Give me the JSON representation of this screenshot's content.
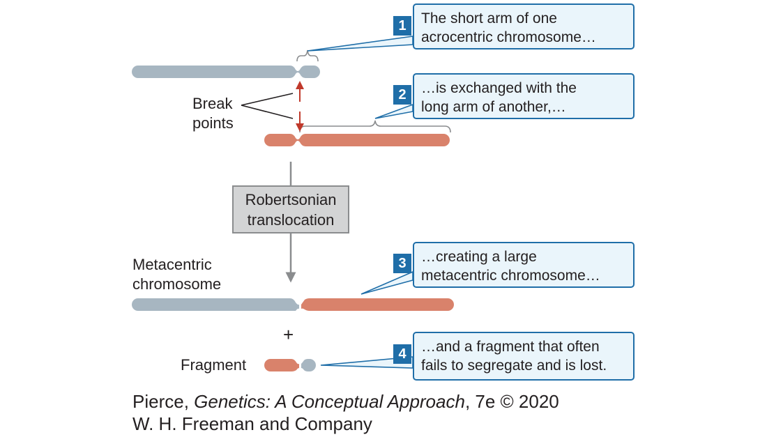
{
  "colors": {
    "blue_chromosome": "#a7b6c1",
    "red_chromosome": "#d9826b",
    "callout_fill": "#eaf5fb",
    "callout_border": "#1f6ea8",
    "break_arrow": "#c0392b",
    "process_box": "#d3d4d5"
  },
  "labels": {
    "break_line1": "Break",
    "break_line2": "points",
    "process_line1": "Robertsonian",
    "process_line2": "translocation",
    "metacentric_line1": "Metacentric",
    "metacentric_line2": "chromosome",
    "plus": "+",
    "fragment": "Fragment"
  },
  "callouts": [
    {
      "number": "1",
      "line1": "The short arm of one",
      "line2": "acrocentric chromosome…"
    },
    {
      "number": "2",
      "line1": "…is exchanged with the",
      "line2": "long arm of another,…"
    },
    {
      "number": "3",
      "line1": "…creating a large",
      "line2": "metacentric chromosome…"
    },
    {
      "number": "4",
      "line1": "…and a fragment that often",
      "line2": "fails to segregate and is lost."
    }
  ],
  "credit": {
    "author": "Pierce, ",
    "title": "Genetics: A Conceptual Approach",
    "edition": ", 7e © 2020",
    "publisher": "W. H. Freeman and Company"
  }
}
